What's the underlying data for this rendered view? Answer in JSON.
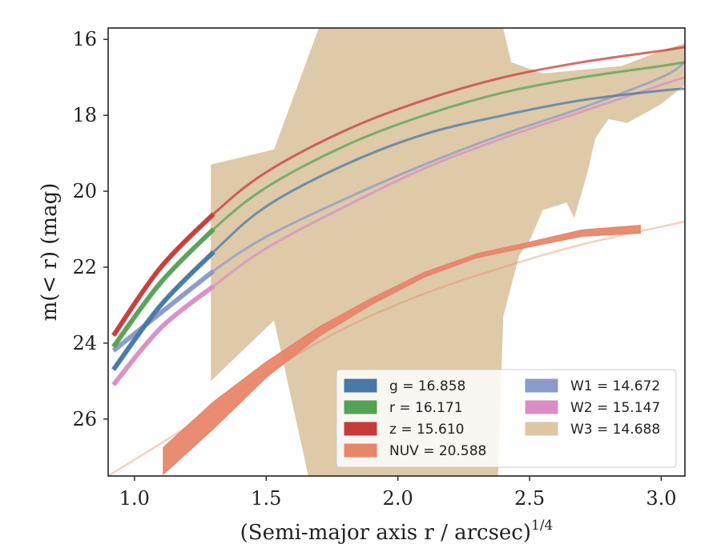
{
  "chart_data": {
    "type": "line",
    "xlabel": "(Semi-major axis r / arcsec)",
    "xlabel_sup": "1/4",
    "ylabel": "m(< r) (mag)",
    "xlim": [
      0.9,
      3.09
    ],
    "ylim": [
      27.5,
      15.7
    ],
    "y_inverted": true,
    "grid": false,
    "legend_position": "lower-right",
    "xticks": [
      1.0,
      1.5,
      2.0,
      2.5,
      3.0
    ],
    "xtick_labels": [
      "1.0",
      "1.5",
      "2.0",
      "2.5",
      "3.0"
    ],
    "yticks": [
      16,
      18,
      20,
      22,
      24,
      26
    ],
    "ytick_labels": [
      "16",
      "18",
      "20",
      "22",
      "24",
      "26"
    ],
    "series": [
      {
        "name": "W3",
        "label_text": "W3 = 14.688",
        "color": "#dcc6a4",
        "style": "band",
        "upper": [
          [
            1.29,
            19.3
          ],
          [
            1.53,
            18.9
          ],
          [
            1.7,
            15.7
          ],
          [
            2.4,
            15.7
          ],
          [
            2.43,
            16.6
          ],
          [
            2.55,
            16.9
          ],
          [
            2.7,
            16.8
          ],
          [
            2.85,
            16.7
          ],
          [
            3.0,
            16.3
          ],
          [
            3.09,
            16.1
          ]
        ],
        "lower": [
          [
            3.09,
            17.2
          ],
          [
            3.0,
            17.7
          ],
          [
            2.95,
            17.9
          ],
          [
            2.87,
            18.2
          ],
          [
            2.8,
            18.1
          ],
          [
            2.75,
            18.6
          ],
          [
            2.72,
            19.5
          ],
          [
            2.67,
            20.7
          ],
          [
            2.64,
            20.3
          ],
          [
            2.55,
            20.5
          ],
          [
            2.5,
            21.3
          ],
          [
            2.46,
            21.7
          ],
          [
            2.4,
            23.3
          ],
          [
            2.38,
            27.5
          ],
          [
            1.66,
            27.5
          ],
          [
            1.53,
            23.4
          ],
          [
            1.29,
            25.0
          ]
        ]
      },
      {
        "name": "NUV",
        "label_text": "NUV = 20.588",
        "color": "#e8866a",
        "style": "band",
        "center": [
          [
            1.11,
            27.1
          ],
          [
            1.3,
            25.9
          ],
          [
            1.5,
            24.7
          ],
          [
            1.7,
            23.7
          ],
          [
            1.9,
            22.9
          ],
          [
            2.1,
            22.2
          ],
          [
            2.3,
            21.7
          ],
          [
            2.5,
            21.4
          ],
          [
            2.7,
            21.1
          ],
          [
            2.92,
            21.0
          ]
        ],
        "half_width": [
          0.35,
          0.35,
          0.2,
          0.12,
          0.08,
          0.06,
          0.05,
          0.06,
          0.08,
          0.1
        ],
        "extrapolation": [
          [
            0.9,
            27.5
          ],
          [
            1.2,
            26.2
          ],
          [
            1.5,
            24.8
          ],
          [
            1.8,
            23.6
          ],
          [
            2.1,
            22.7
          ],
          [
            2.4,
            22.0
          ],
          [
            2.7,
            21.4
          ],
          [
            3.09,
            20.8
          ]
        ]
      },
      {
        "name": "W2",
        "label_text": "W2 = 15.147",
        "color": "#d98fc4",
        "style": "line",
        "values": [
          [
            0.92,
            25.1
          ],
          [
            1.1,
            23.6
          ],
          [
            1.3,
            22.5
          ],
          [
            1.5,
            21.5
          ],
          [
            1.8,
            20.4
          ],
          [
            2.1,
            19.4
          ],
          [
            2.4,
            18.6
          ],
          [
            2.7,
            17.9
          ],
          [
            3.0,
            17.2
          ],
          [
            3.09,
            17.0
          ]
        ]
      },
      {
        "name": "W1",
        "label_text": "W1 = 14.672",
        "color": "#8a9bc8",
        "style": "line",
        "values": [
          [
            0.92,
            24.2
          ],
          [
            1.1,
            23.2
          ],
          [
            1.3,
            22.1
          ],
          [
            1.5,
            21.2
          ],
          [
            1.8,
            20.2
          ],
          [
            2.1,
            19.3
          ],
          [
            2.4,
            18.5
          ],
          [
            2.7,
            17.8
          ],
          [
            3.0,
            17.0
          ],
          [
            3.09,
            16.6
          ]
        ]
      },
      {
        "name": "g",
        "label_text": "g = 16.858",
        "color": "#4878a6",
        "style": "line",
        "values": [
          [
            0.92,
            24.7
          ],
          [
            1.1,
            23.0
          ],
          [
            1.3,
            21.6
          ],
          [
            1.5,
            20.4
          ],
          [
            1.8,
            19.3
          ],
          [
            2.1,
            18.5
          ],
          [
            2.4,
            18.0
          ],
          [
            2.7,
            17.6
          ],
          [
            3.0,
            17.35
          ],
          [
            3.09,
            17.3
          ]
        ]
      },
      {
        "name": "r",
        "label_text": "r = 16.171",
        "color": "#55a155",
        "style": "line",
        "values": [
          [
            0.92,
            24.1
          ],
          [
            1.1,
            22.4
          ],
          [
            1.3,
            21.0
          ],
          [
            1.5,
            19.9
          ],
          [
            1.8,
            18.8
          ],
          [
            2.1,
            18.0
          ],
          [
            2.4,
            17.4
          ],
          [
            2.7,
            17.0
          ],
          [
            3.0,
            16.7
          ],
          [
            3.09,
            16.6
          ]
        ]
      },
      {
        "name": "z",
        "label_text": "z = 15.610",
        "color": "#c83b3b",
        "style": "line",
        "values": [
          [
            0.92,
            23.8
          ],
          [
            1.1,
            22.0
          ],
          [
            1.3,
            20.6
          ],
          [
            1.5,
            19.5
          ],
          [
            1.8,
            18.4
          ],
          [
            2.1,
            17.6
          ],
          [
            2.4,
            17.0
          ],
          [
            2.7,
            16.6
          ],
          [
            3.0,
            16.3
          ],
          [
            3.09,
            16.2
          ]
        ]
      }
    ],
    "legend": [
      {
        "name": "g",
        "label_text": "g = 16.858",
        "color": "#4878a6"
      },
      {
        "name": "r",
        "label_text": "r = 16.171",
        "color": "#55a155"
      },
      {
        "name": "z",
        "label_text": "z = 15.610",
        "color": "#c83b3b"
      },
      {
        "name": "NUV",
        "label_text": "NUV = 20.588",
        "color": "#e8866a"
      },
      {
        "name": "W1",
        "label_text": "W1 = 14.672",
        "color": "#8a9bc8"
      },
      {
        "name": "W2",
        "label_text": "W2 = 15.147",
        "color": "#d98fc4"
      },
      {
        "name": "W3",
        "label_text": "W3 = 14.688",
        "color": "#dcc6a4"
      }
    ]
  }
}
